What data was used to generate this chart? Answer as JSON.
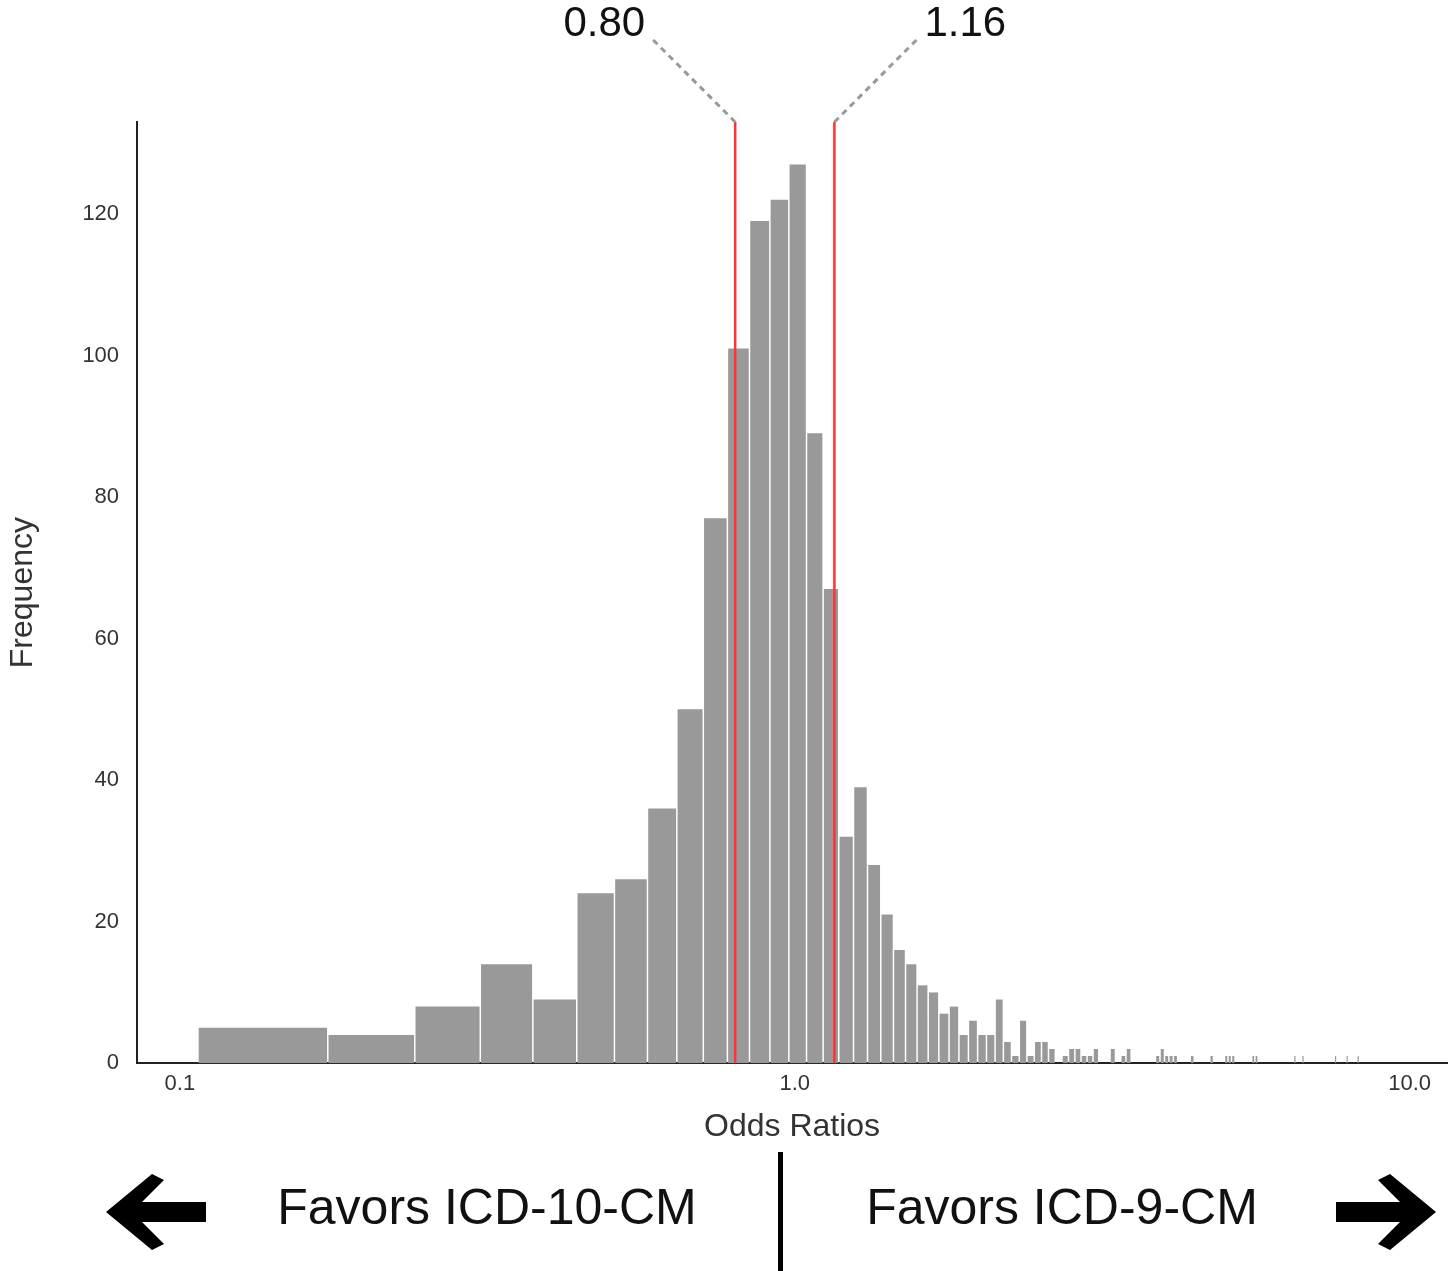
{
  "chart_data": {
    "type": "histogram",
    "xlabel": "Odds Ratios",
    "ylabel": "Frequency",
    "log": "x",
    "color": "#999999",
    "bins": [
      0.107,
      0.174,
      0.241,
      0.308,
      0.375,
      0.442,
      0.509,
      0.576,
      0.643,
      0.71,
      0.777,
      0.844,
      0.911,
      0.978,
      1.045,
      1.112,
      1.179,
      1.246,
      1.313,
      1.38,
      1.447,
      1.514,
      1.581,
      1.648,
      1.715,
      1.782,
      1.849,
      1.916,
      1.983,
      2.05,
      2.117,
      2.184,
      2.251,
      2.318,
      2.385,
      2.452,
      2.519,
      2.586,
      2.653,
      2.72,
      2.787,
      2.854,
      2.921,
      2.988,
      3.055,
      3.122,
      3.256,
      3.323,
      3.39,
      3.457,
      3.524,
      3.859,
      3.926,
      3.993,
      4.06,
      4.127,
      4.194,
      4.395,
      4.462,
      4.73,
      4.797,
      4.998,
      5.065,
      5.132,
      5.199,
      5.534,
      5.601,
      5.668,
      6.472,
      6.539,
      6.673,
      6.74,
      7.544,
      7.611,
      7.879,
      7.946,
      8.214,
      8.281
    ],
    "values": [
      5,
      4,
      8,
      14,
      9,
      24,
      26,
      36,
      50,
      77,
      101,
      119,
      122,
      127,
      89,
      67,
      32,
      39,
      28,
      21,
      16,
      14,
      11,
      10,
      7,
      8,
      4,
      6,
      4,
      4,
      9,
      3,
      1,
      6,
      1,
      3,
      3,
      2,
      0,
      1,
      2,
      2,
      1,
      1,
      2,
      0,
      2,
      0,
      1,
      2,
      0,
      1,
      2,
      1,
      1,
      1,
      0,
      1,
      0,
      1,
      0,
      1,
      1,
      1,
      0,
      1,
      1,
      0,
      1,
      0,
      1,
      0,
      1,
      0,
      1,
      0,
      1
    ],
    "xlim": [
      0.0852,
      11.5
    ],
    "xticks": [
      0.1,
      {
        "value": 1,
        "label": "1.0"
      },
      {
        "value": 10,
        "label": "10.0"
      }
    ],
    "ylim": [
      0,
      133
    ],
    "yticks": [
      0,
      20,
      40,
      60,
      80,
      100,
      120
    ],
    "ref_lines": [
      {
        "axis": "x",
        "value": 0.8,
        "label": "0.80",
        "color": "#ff3333"
      },
      {
        "axis": "x",
        "value": 1.16,
        "label": "1.16",
        "color": "#ff3333"
      }
    ],
    "annotations": [
      "Favors ICD-10-CM",
      "Favors ICD-9-CM"
    ]
  }
}
